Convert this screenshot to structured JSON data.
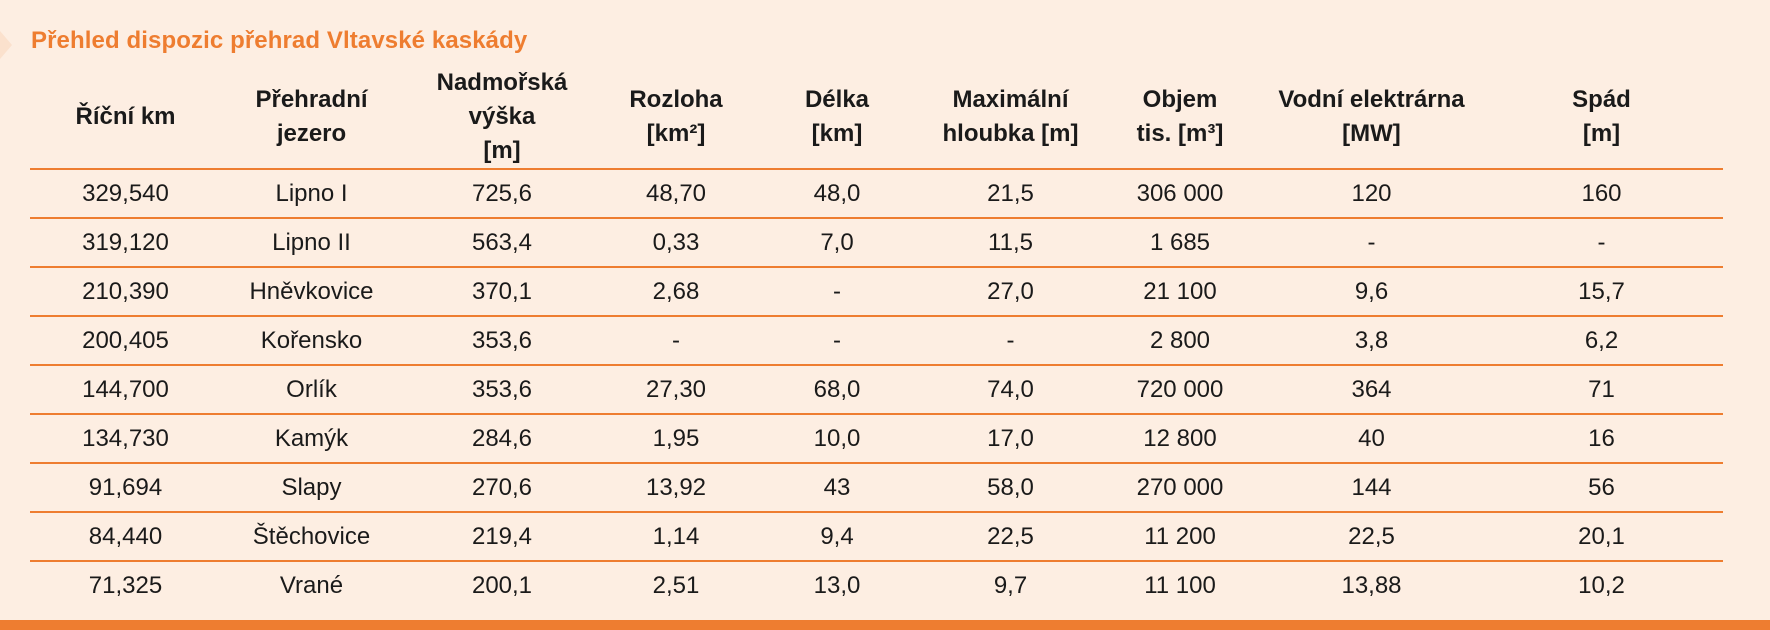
{
  "title": "Přehled dispozic přehrad Vltavské kaskády",
  "colors": {
    "accent": "#ee7d30",
    "background": "#fdeee2",
    "text": "#1a1a1a"
  },
  "table": {
    "headers": [
      {
        "line1": "Říční km",
        "line2": ""
      },
      {
        "line1": "Přehradní",
        "line2": "jezero"
      },
      {
        "line1": "Nadmořská výška",
        "line2": "[m]"
      },
      {
        "line1": "Rozloha",
        "line2": "[km²]"
      },
      {
        "line1": "Délka",
        "line2": "[km]"
      },
      {
        "line1": "Maximální",
        "line2": "hloubka [m]"
      },
      {
        "line1": "Objem",
        "line2": "tis. [m³]"
      },
      {
        "line1": "Vodní elektrárna",
        "line2": "[MW]"
      },
      {
        "line1": "Spád",
        "line2": "[m]"
      }
    ],
    "rows": [
      [
        "329,540",
        "Lipno I",
        "725,6",
        "48,70",
        "48,0",
        "21,5",
        "306 000",
        "120",
        "160"
      ],
      [
        "319,120",
        "Lipno II",
        "563,4",
        "0,33",
        "7,0",
        "11,5",
        "1 685",
        "-",
        "-"
      ],
      [
        "210,390",
        "Hněvkovice",
        "370,1",
        "2,68",
        "-",
        "27,0",
        "21 100",
        "9,6",
        "15,7"
      ],
      [
        "200,405",
        "Kořensko",
        "353,6",
        "-",
        "-",
        "-",
        "2 800",
        "3,8",
        "6,2"
      ],
      [
        "144,700",
        "Orlík",
        "353,6",
        "27,30",
        "68,0",
        "74,0",
        "720 000",
        "364",
        "71"
      ],
      [
        "134,730",
        "Kamýk",
        "284,6",
        "1,95",
        "10,0",
        "17,0",
        "12 800",
        "40",
        "16"
      ],
      [
        "91,694",
        "Slapy",
        "270,6",
        "13,92",
        "43",
        "58,0",
        "270 000",
        "144",
        "56"
      ],
      [
        "84,440",
        "Štěchovice",
        "219,4",
        "1,14",
        "9,4",
        "22,5",
        "11 200",
        "22,5",
        "20,1"
      ],
      [
        "71,325",
        "Vrané",
        "200,1",
        "2,51",
        "13,0",
        "9,7",
        "11 100",
        "13,88",
        "10,2"
      ]
    ]
  }
}
